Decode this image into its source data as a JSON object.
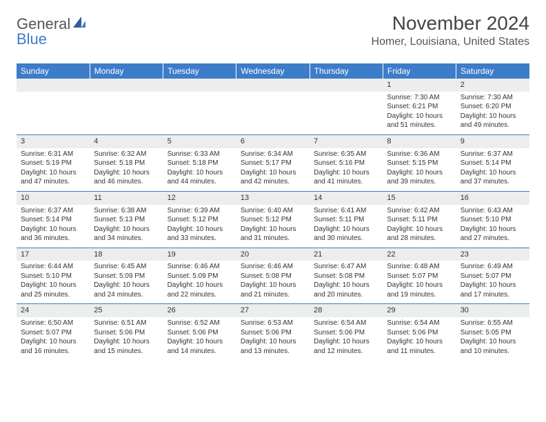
{
  "brand": {
    "part1": "General",
    "part2": "Blue"
  },
  "title": "November 2024",
  "location": "Homer, Louisiana, United States",
  "colors": {
    "header_bg": "#3d7cc9",
    "header_fg": "#ffffff",
    "daynum_bg": "#eceded",
    "cell_border": "#3d7cc9",
    "text": "#333333",
    "logo_blue": "#3d7cc9"
  },
  "weekdays": [
    "Sunday",
    "Monday",
    "Tuesday",
    "Wednesday",
    "Thursday",
    "Friday",
    "Saturday"
  ],
  "weeks": [
    [
      null,
      null,
      null,
      null,
      null,
      {
        "n": "1",
        "sunrise": "7:30 AM",
        "sunset": "6:21 PM",
        "dl1": "Daylight: 10 hours",
        "dl2": "and 51 minutes."
      },
      {
        "n": "2",
        "sunrise": "7:30 AM",
        "sunset": "6:20 PM",
        "dl1": "Daylight: 10 hours",
        "dl2": "and 49 minutes."
      }
    ],
    [
      {
        "n": "3",
        "sunrise": "6:31 AM",
        "sunset": "5:19 PM",
        "dl1": "Daylight: 10 hours",
        "dl2": "and 47 minutes."
      },
      {
        "n": "4",
        "sunrise": "6:32 AM",
        "sunset": "5:18 PM",
        "dl1": "Daylight: 10 hours",
        "dl2": "and 46 minutes."
      },
      {
        "n": "5",
        "sunrise": "6:33 AM",
        "sunset": "5:18 PM",
        "dl1": "Daylight: 10 hours",
        "dl2": "and 44 minutes."
      },
      {
        "n": "6",
        "sunrise": "6:34 AM",
        "sunset": "5:17 PM",
        "dl1": "Daylight: 10 hours",
        "dl2": "and 42 minutes."
      },
      {
        "n": "7",
        "sunrise": "6:35 AM",
        "sunset": "5:16 PM",
        "dl1": "Daylight: 10 hours",
        "dl2": "and 41 minutes."
      },
      {
        "n": "8",
        "sunrise": "6:36 AM",
        "sunset": "5:15 PM",
        "dl1": "Daylight: 10 hours",
        "dl2": "and 39 minutes."
      },
      {
        "n": "9",
        "sunrise": "6:37 AM",
        "sunset": "5:14 PM",
        "dl1": "Daylight: 10 hours",
        "dl2": "and 37 minutes."
      }
    ],
    [
      {
        "n": "10",
        "sunrise": "6:37 AM",
        "sunset": "5:14 PM",
        "dl1": "Daylight: 10 hours",
        "dl2": "and 36 minutes."
      },
      {
        "n": "11",
        "sunrise": "6:38 AM",
        "sunset": "5:13 PM",
        "dl1": "Daylight: 10 hours",
        "dl2": "and 34 minutes."
      },
      {
        "n": "12",
        "sunrise": "6:39 AM",
        "sunset": "5:12 PM",
        "dl1": "Daylight: 10 hours",
        "dl2": "and 33 minutes."
      },
      {
        "n": "13",
        "sunrise": "6:40 AM",
        "sunset": "5:12 PM",
        "dl1": "Daylight: 10 hours",
        "dl2": "and 31 minutes."
      },
      {
        "n": "14",
        "sunrise": "6:41 AM",
        "sunset": "5:11 PM",
        "dl1": "Daylight: 10 hours",
        "dl2": "and 30 minutes."
      },
      {
        "n": "15",
        "sunrise": "6:42 AM",
        "sunset": "5:11 PM",
        "dl1": "Daylight: 10 hours",
        "dl2": "and 28 minutes."
      },
      {
        "n": "16",
        "sunrise": "6:43 AM",
        "sunset": "5:10 PM",
        "dl1": "Daylight: 10 hours",
        "dl2": "and 27 minutes."
      }
    ],
    [
      {
        "n": "17",
        "sunrise": "6:44 AM",
        "sunset": "5:10 PM",
        "dl1": "Daylight: 10 hours",
        "dl2": "and 25 minutes."
      },
      {
        "n": "18",
        "sunrise": "6:45 AM",
        "sunset": "5:09 PM",
        "dl1": "Daylight: 10 hours",
        "dl2": "and 24 minutes."
      },
      {
        "n": "19",
        "sunrise": "6:46 AM",
        "sunset": "5:09 PM",
        "dl1": "Daylight: 10 hours",
        "dl2": "and 22 minutes."
      },
      {
        "n": "20",
        "sunrise": "6:46 AM",
        "sunset": "5:08 PM",
        "dl1": "Daylight: 10 hours",
        "dl2": "and 21 minutes."
      },
      {
        "n": "21",
        "sunrise": "6:47 AM",
        "sunset": "5:08 PM",
        "dl1": "Daylight: 10 hours",
        "dl2": "and 20 minutes."
      },
      {
        "n": "22",
        "sunrise": "6:48 AM",
        "sunset": "5:07 PM",
        "dl1": "Daylight: 10 hours",
        "dl2": "and 19 minutes."
      },
      {
        "n": "23",
        "sunrise": "6:49 AM",
        "sunset": "5:07 PM",
        "dl1": "Daylight: 10 hours",
        "dl2": "and 17 minutes."
      }
    ],
    [
      {
        "n": "24",
        "sunrise": "6:50 AM",
        "sunset": "5:07 PM",
        "dl1": "Daylight: 10 hours",
        "dl2": "and 16 minutes."
      },
      {
        "n": "25",
        "sunrise": "6:51 AM",
        "sunset": "5:06 PM",
        "dl1": "Daylight: 10 hours",
        "dl2": "and 15 minutes."
      },
      {
        "n": "26",
        "sunrise": "6:52 AM",
        "sunset": "5:06 PM",
        "dl1": "Daylight: 10 hours",
        "dl2": "and 14 minutes."
      },
      {
        "n": "27",
        "sunrise": "6:53 AM",
        "sunset": "5:06 PM",
        "dl1": "Daylight: 10 hours",
        "dl2": "and 13 minutes."
      },
      {
        "n": "28",
        "sunrise": "6:54 AM",
        "sunset": "5:06 PM",
        "dl1": "Daylight: 10 hours",
        "dl2": "and 12 minutes."
      },
      {
        "n": "29",
        "sunrise": "6:54 AM",
        "sunset": "5:06 PM",
        "dl1": "Daylight: 10 hours",
        "dl2": "and 11 minutes."
      },
      {
        "n": "30",
        "sunrise": "6:55 AM",
        "sunset": "5:05 PM",
        "dl1": "Daylight: 10 hours",
        "dl2": "and 10 minutes."
      }
    ]
  ],
  "labels": {
    "sunrise": "Sunrise:",
    "sunset": "Sunset:"
  }
}
